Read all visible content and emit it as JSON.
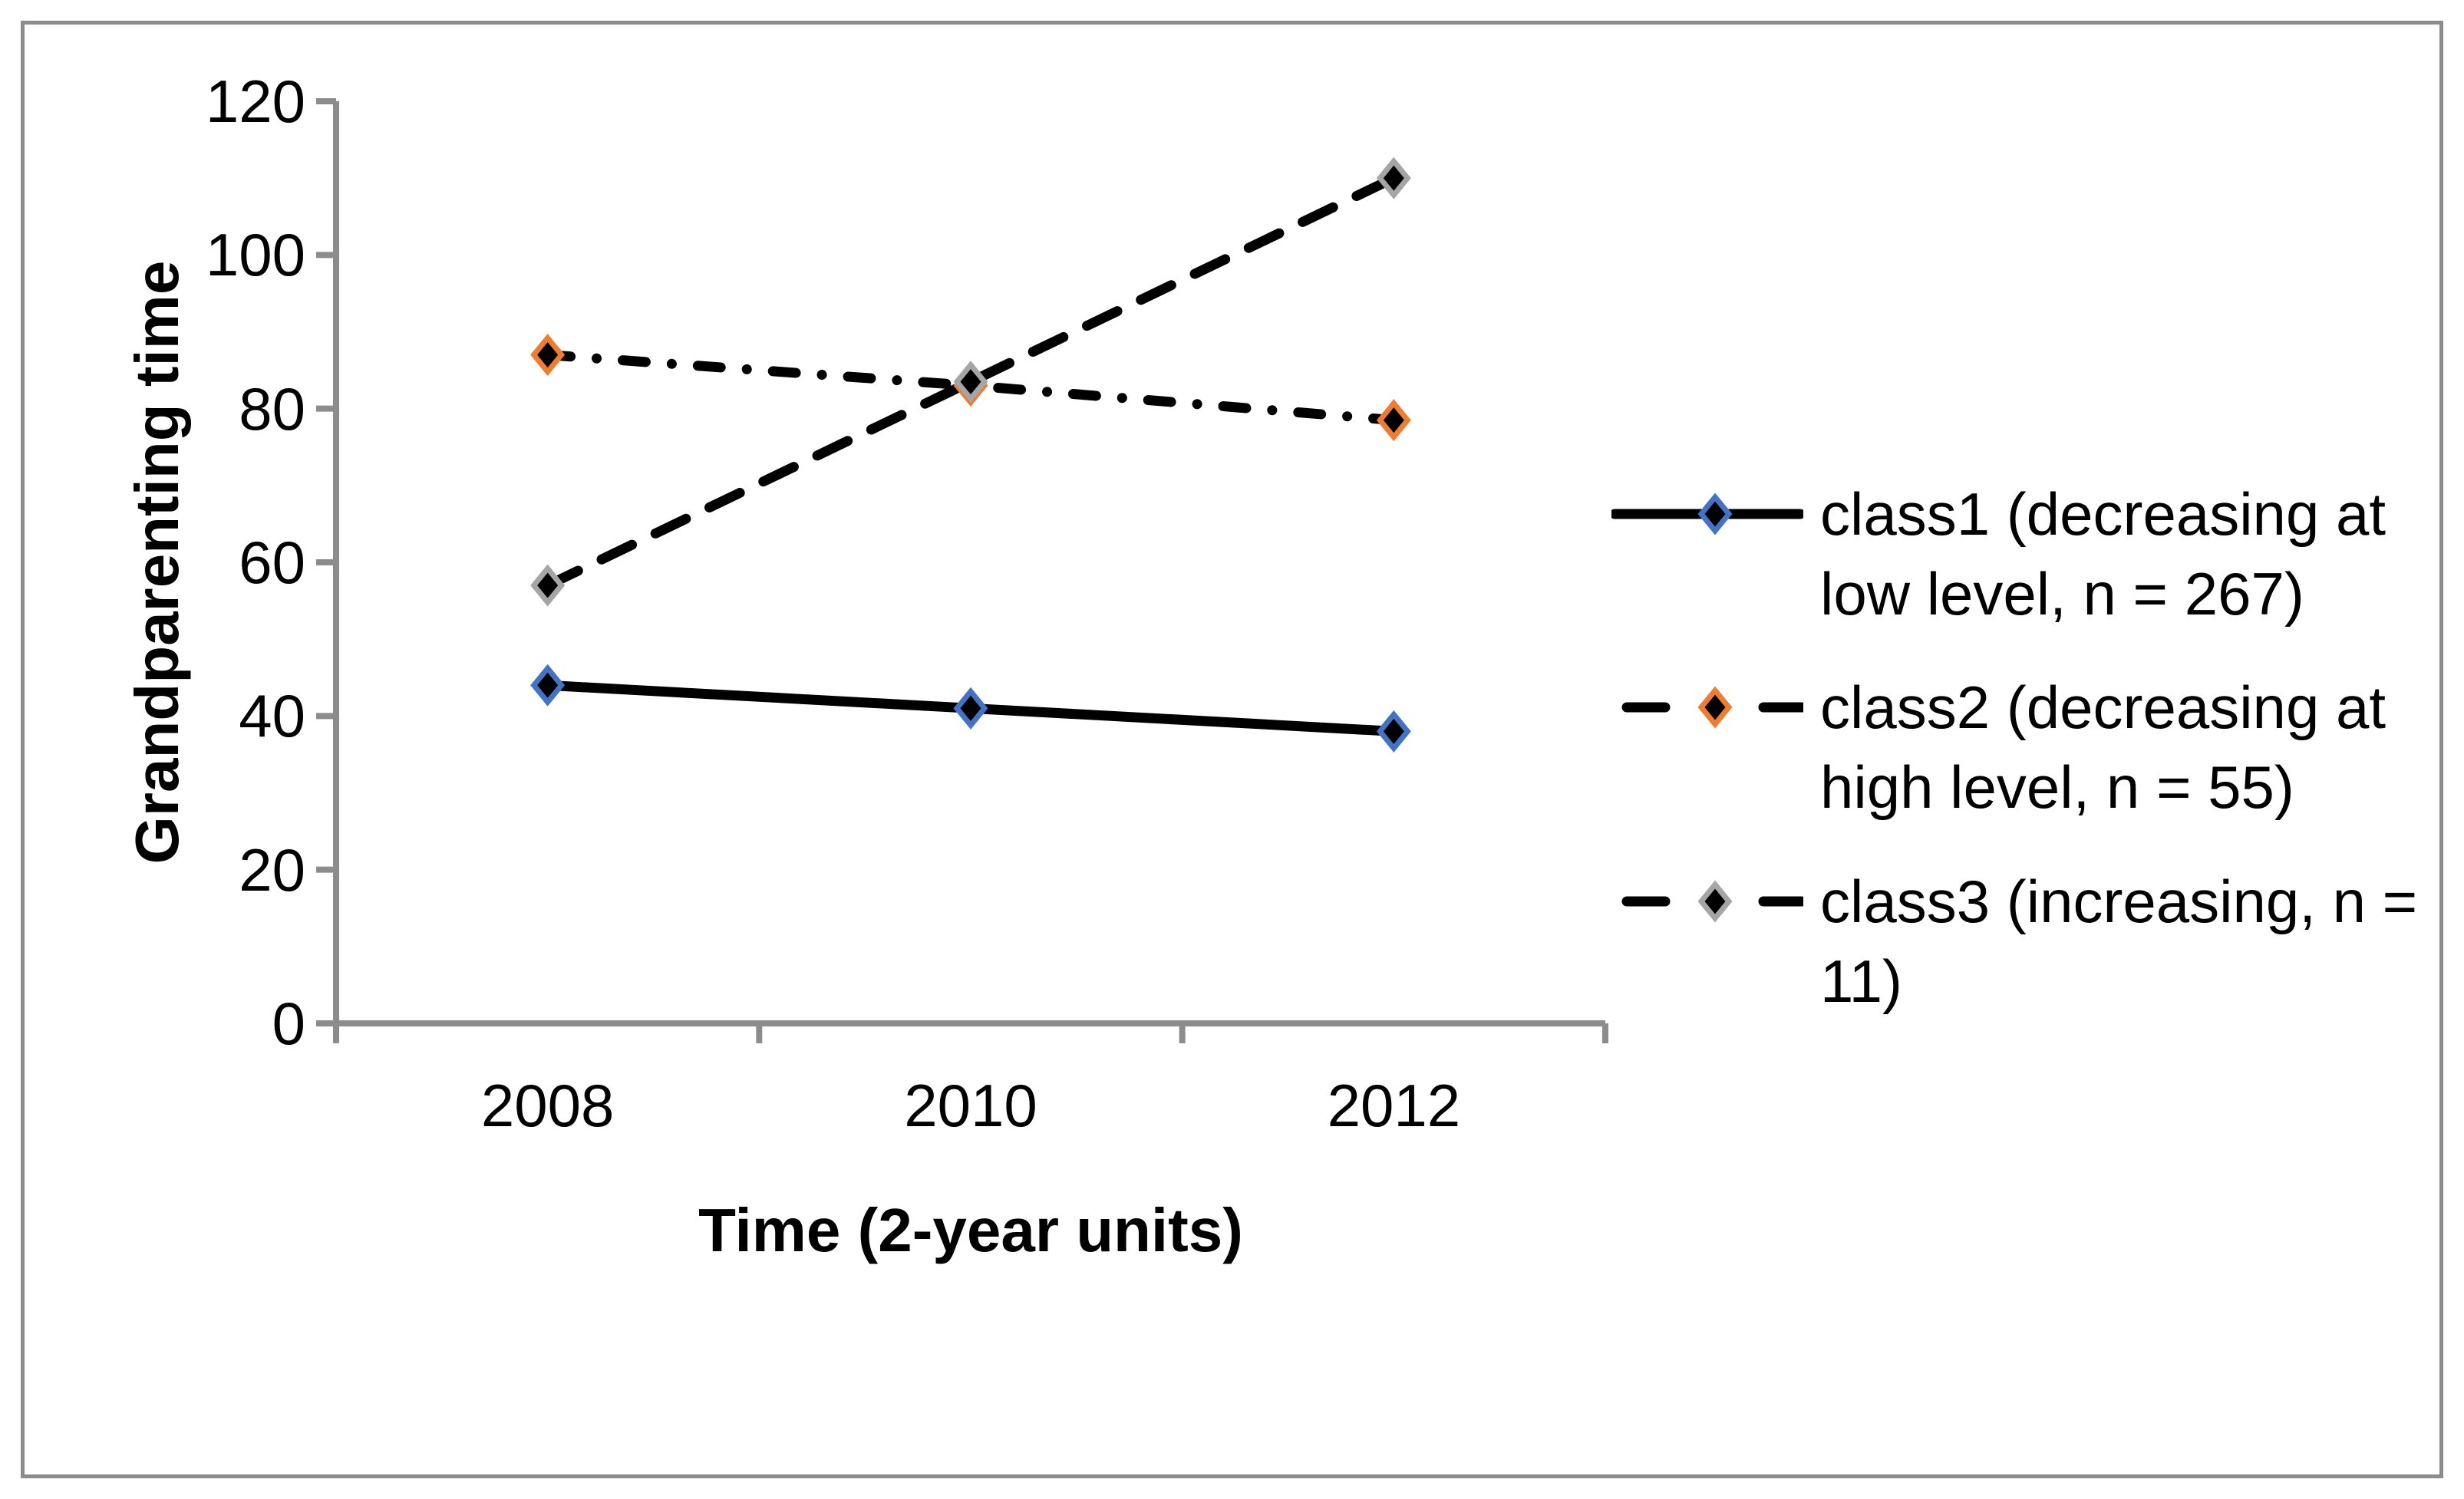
{
  "figure": {
    "background_color": "#FFFFFF",
    "border_color": "#8C8C8C",
    "axis_color": "#8C8C8C",
    "text_color": "#000000"
  },
  "chart_data": {
    "type": "line",
    "title": "",
    "xlabel": "Time (2-year units)",
    "ylabel": "Grandparenting time",
    "categories": [
      "2008",
      "2010",
      "2012"
    ],
    "ylim": [
      0,
      120
    ],
    "yticks": [
      0,
      20,
      40,
      60,
      80,
      100,
      120
    ],
    "grid": "off",
    "legend_position": "right",
    "line_color": "#000000",
    "series": [
      {
        "name": "class1 (decreasing at\nlow level, n = 267)",
        "values": [
          44,
          41,
          38
        ],
        "line_style": "solid",
        "marker": "diamond",
        "marker_fill": "#000000",
        "marker_outline": "#4472C4"
      },
      {
        "name": "class2 (decreasing at\nhigh level, n = 55)",
        "values": [
          87,
          83,
          78.5
        ],
        "line_style": "dash-dot",
        "marker": "diamond",
        "marker_fill": "#000000",
        "marker_outline": "#ED7D31"
      },
      {
        "name": "class3 (increasing, n =\n11)",
        "values": [
          57,
          83.5,
          110
        ],
        "line_style": "dashed",
        "marker": "diamond",
        "marker_fill": "#000000",
        "marker_outline": "#A5A5A5"
      }
    ]
  }
}
